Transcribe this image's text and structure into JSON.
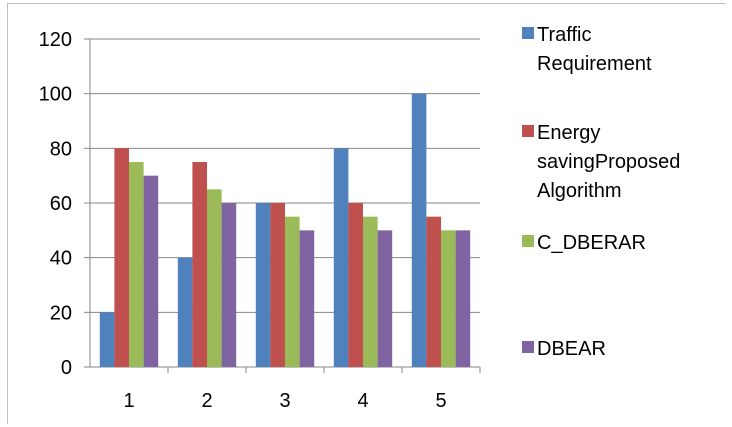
{
  "chart_data": {
    "type": "bar",
    "categories": [
      "1",
      "2",
      "3",
      "4",
      "5"
    ],
    "series": [
      {
        "name": "Traffic Requirement",
        "legend_lines": [
          "Traffic",
          "Requirement"
        ],
        "values": [
          20,
          40,
          60,
          80,
          100
        ],
        "color": "#4f81bd"
      },
      {
        "name": "Energy savingProposed Algorithm",
        "legend_lines": [
          "Energy",
          "savingProposed",
          "Algorithm"
        ],
        "values": [
          80,
          75,
          60,
          60,
          55
        ],
        "color": "#c0504d"
      },
      {
        "name": "C_DBERAR",
        "legend_lines": [
          "C_DBERAR"
        ],
        "values": [
          75,
          65,
          55,
          55,
          50
        ],
        "color": "#9bbb59"
      },
      {
        "name": "DBEAR",
        "legend_lines": [
          "DBEAR"
        ],
        "values": [
          70,
          60,
          50,
          50,
          50
        ],
        "color": "#8064a2"
      }
    ],
    "y_ticks": [
      "0",
      "20",
      "40",
      "60",
      "80",
      "100",
      "120"
    ],
    "ylim": [
      0,
      120
    ],
    "grid": true,
    "legend_position": "right",
    "title": "",
    "xlabel": "",
    "ylabel": ""
  }
}
